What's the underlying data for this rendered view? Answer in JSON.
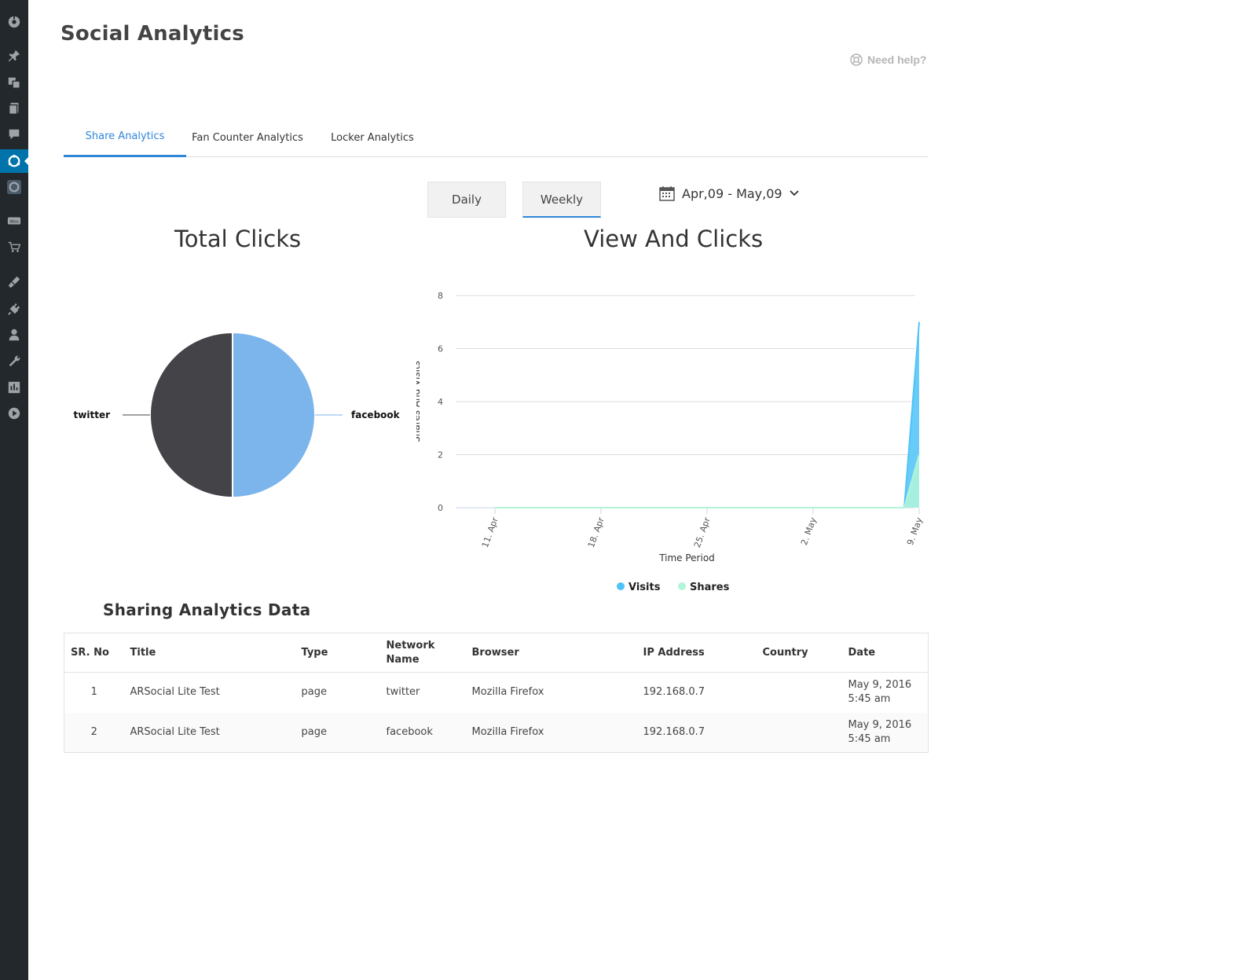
{
  "page": {
    "title": "Social Analytics",
    "need_help": "Need help?"
  },
  "sidebar": {
    "icons": [
      "dashboard-icon",
      "pin-icon",
      "media-icon",
      "pages-icon",
      "comments-icon",
      "arsocial-icon",
      "arsocial-secondary-icon",
      "woocommerce-icon",
      "cart-icon",
      "appearance-icon",
      "plugins-icon",
      "users-icon",
      "tools-icon",
      "settings-icon",
      "play-icon"
    ],
    "active_index": 5
  },
  "tabs": [
    {
      "label": "Share Analytics",
      "active": true
    },
    {
      "label": "Fan Counter Analytics",
      "active": false
    },
    {
      "label": "Locker Analytics",
      "active": false
    }
  ],
  "period": {
    "daily_label": "Daily",
    "weekly_label": "Weekly",
    "selected": "Weekly",
    "date_range": "Apr,09 - May,09"
  },
  "pie_chart": {
    "title": "Total Clicks"
  },
  "area_chart": {
    "title": "View And Clicks"
  },
  "chart_data": [
    {
      "type": "pie",
      "title": "Total Clicks",
      "labels": [
        "facebook",
        "twitter"
      ],
      "values": [
        1,
        1
      ],
      "colors": [
        "#7cb5ec",
        "#434348"
      ]
    },
    {
      "type": "area",
      "title": "View And Clicks",
      "xlabel": "Time Period",
      "ylabel": "Shares And Visits",
      "x_ticks": [
        "11. Apr",
        "18. Apr",
        "25. Apr",
        "2. May",
        "9. May"
      ],
      "x": [
        "11. Apr",
        "18. Apr",
        "25. Apr",
        "2. May",
        "8. May",
        "9. May"
      ],
      "ylim": [
        0,
        8
      ],
      "y_ticks": [
        0,
        2,
        4,
        6,
        8
      ],
      "grid": true,
      "legend_position": "bottom",
      "series": [
        {
          "name": "Visits",
          "color": "#4fc3f7",
          "values": [
            0,
            0,
            0,
            0,
            0,
            7
          ]
        },
        {
          "name": "Shares",
          "color": "#b2f5d9",
          "values": [
            0,
            0,
            0,
            0,
            0,
            2
          ]
        }
      ]
    }
  ],
  "table": {
    "title": "Sharing Analytics Data",
    "headers": [
      "SR. No",
      "Title",
      "Type",
      "Network Name",
      "Browser",
      "IP Address",
      "Country",
      "Date"
    ],
    "rows": [
      {
        "sr": "1",
        "title": "ARSocial Lite Test",
        "type": "page",
        "network": "twitter",
        "browser": "Mozilla Firefox",
        "ip": "192.168.0.7",
        "country": "",
        "date": "May 9, 2016 5:45 am"
      },
      {
        "sr": "2",
        "title": "ARSocial Lite Test",
        "type": "page",
        "network": "facebook",
        "browser": "Mozilla Firefox",
        "ip": "192.168.0.7",
        "country": "",
        "date": "May 9, 2016 5:45 am"
      }
    ]
  }
}
